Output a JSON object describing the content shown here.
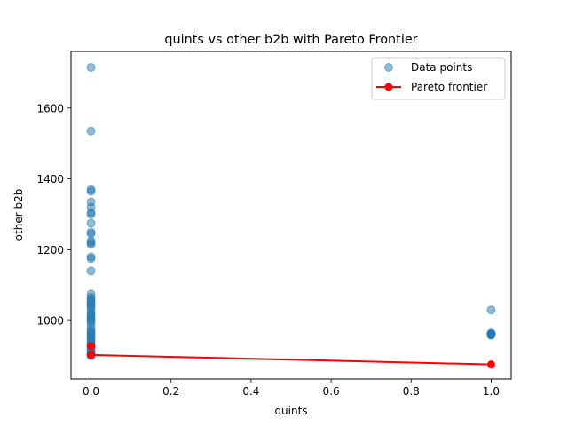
{
  "chart_data": {
    "type": "scatter",
    "title": "quints vs other b2b with Pareto Frontier",
    "xlabel": "quints",
    "ylabel": "other b2b",
    "xlim": [
      -0.05,
      1.05
    ],
    "ylim": [
      835,
      1760
    ],
    "xticks": [
      0.0,
      0.2,
      0.4,
      0.6,
      0.8,
      1.0
    ],
    "xtick_labels": [
      "0.0",
      "0.2",
      "0.4",
      "0.6",
      "0.8",
      "1.0"
    ],
    "yticks": [
      1000,
      1200,
      1400,
      1600
    ],
    "ytick_labels": [
      "1000",
      "1200",
      "1400",
      "1600"
    ],
    "grid": false,
    "legend_position": "top-right",
    "series": [
      {
        "name": "Data points",
        "kind": "scatter",
        "color": "#1f77b4",
        "alpha": 0.5,
        "x": [
          0,
          0,
          0,
          0,
          0,
          0,
          0,
          0,
          0,
          0,
          0,
          0,
          0,
          0,
          0,
          0,
          0,
          0,
          0,
          0,
          0,
          0,
          0,
          0,
          0,
          0,
          0,
          0,
          0,
          0,
          0,
          0,
          0,
          0,
          0,
          0,
          0,
          0,
          0,
          0,
          0,
          0,
          0,
          0,
          0,
          0,
          0,
          0,
          0,
          0,
          0,
          0,
          1,
          1,
          1,
          1,
          1,
          1,
          1
        ],
        "y": [
          1715,
          1535,
          1370,
          1365,
          1335,
          1320,
          1305,
          1300,
          1275,
          1250,
          1245,
          1225,
          1220,
          1215,
          1180,
          1175,
          1140,
          1075,
          1065,
          1060,
          1055,
          1050,
          1045,
          1040,
          1035,
          1025,
          1020,
          1015,
          1010,
          1005,
          1000,
          995,
          985,
          975,
          970,
          965,
          960,
          955,
          950,
          945,
          940,
          935,
          930,
          928,
          925,
          920,
          915,
          910,
          906,
          905,
          903,
          900,
          1030,
          965,
          963,
          962,
          961,
          960,
          959
        ]
      },
      {
        "name": "Pareto frontier",
        "kind": "line",
        "color": "#ff0000",
        "x": [
          0,
          0,
          1
        ],
        "y": [
          928,
          903,
          876
        ]
      }
    ]
  }
}
